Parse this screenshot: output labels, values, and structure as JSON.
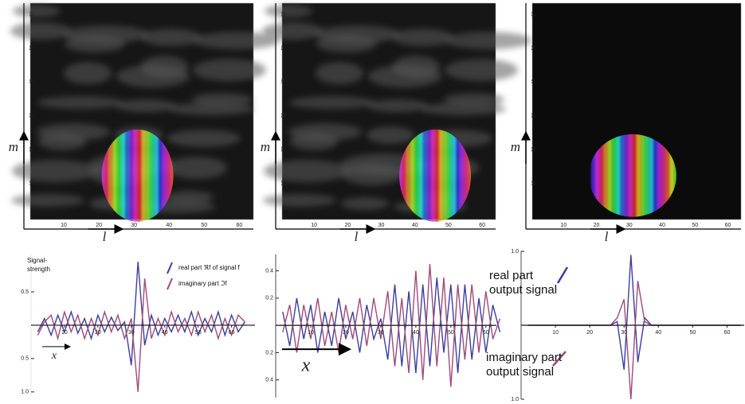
{
  "chart_data": [
    {
      "type": "image",
      "xlabel": "l",
      "ylabel": "m",
      "xlim": [
        0,
        64
      ],
      "ylim": [
        0,
        64
      ],
      "xticks": [
        10,
        20,
        30,
        40,
        50,
        60
      ],
      "yticks": [
        10,
        20,
        30,
        40,
        50,
        60
      ]
    },
    {
      "type": "image",
      "xlabel": "l",
      "ylabel": "m",
      "xlim": [
        0,
        64
      ],
      "ylim": [
        0,
        64
      ],
      "xticks": [
        10,
        20,
        30,
        40,
        50,
        60
      ],
      "yticks": [
        10,
        20,
        30,
        40,
        50,
        60
      ]
    },
    {
      "type": "image",
      "xlabel": "l",
      "ylabel": "m",
      "xlim": [
        0,
        64
      ],
      "ylim": [
        0,
        64
      ],
      "xticks": [
        10,
        20,
        30,
        40,
        50,
        60
      ],
      "yticks": [
        10,
        20,
        30,
        40,
        50,
        60
      ]
    },
    {
      "type": "line",
      "ylabel": [
        "Signal-",
        "strength"
      ],
      "xlabel": "x",
      "xlim": [
        0,
        67
      ],
      "ylim": [
        -1.05,
        1.06
      ],
      "xticks": [
        10,
        20,
        30,
        40,
        50,
        60
      ],
      "yticks": [
        0.5,
        {
          "value": -0.5,
          "label": "0.5"
        },
        {
          "value": -1,
          "label": "1.0"
        }
      ],
      "x": [
        2,
        4,
        6,
        8,
        10,
        12,
        14,
        16,
        18,
        20,
        22,
        24,
        26,
        28,
        30,
        32,
        34,
        36,
        38,
        40,
        42,
        44,
        46,
        48,
        50,
        52,
        54,
        56,
        58,
        60,
        62,
        64
      ],
      "series": [
        {
          "name": "real part ℜf of signal f",
          "color": "#3d3d9e",
          "values": [
            -0.1,
            0.1,
            -0.15,
            0.15,
            -0.1,
            0.2,
            -0.12,
            0.1,
            -0.2,
            0.15,
            -0.1,
            0.12,
            -0.08,
            0.05,
            -0.6,
            0.95,
            -0.3,
            0.15,
            -0.15,
            0.1,
            -0.1,
            0.15,
            -0.1,
            0.2,
            -0.15,
            0.1,
            -0.1,
            0.2,
            -0.15,
            0.15,
            -0.1,
            0.05
          ]
        },
        {
          "name": "imaginary part ℑf",
          "color": "#a04a78",
          "values": [
            -0.15,
            0.05,
            0.15,
            -0.2,
            0.2,
            -0.1,
            0.15,
            -0.2,
            0.1,
            -0.15,
            0.2,
            -0.1,
            0.15,
            -0.2,
            0.1,
            -1.0,
            0.7,
            -0.2,
            0.1,
            -0.15,
            0.2,
            -0.1,
            0.1,
            -0.15,
            0.2,
            -0.1,
            0.15,
            -0.2,
            0.1,
            -0.15,
            0.15,
            0.05
          ]
        }
      ]
    },
    {
      "type": "line",
      "xlabel": "x",
      "xlim": [
        0,
        63
      ],
      "ylim": [
        -0.53,
        0.52
      ],
      "xticks": [
        10,
        20,
        30,
        40,
        50,
        60
      ],
      "yticks": [
        0.4,
        0.2,
        {
          "value": -0.2,
          "label": "0.2"
        },
        {
          "value": -0.4,
          "label": "0.4"
        }
      ],
      "x": [
        2,
        4,
        6,
        8,
        10,
        12,
        14,
        16,
        18,
        20,
        22,
        24,
        26,
        28,
        30,
        32,
        34,
        36,
        38,
        40,
        42,
        44,
        46,
        48,
        50,
        52,
        54,
        56,
        58,
        60,
        62,
        64
      ],
      "series": [
        {
          "color": "#3d3d9e",
          "values": [
            0.1,
            -0.15,
            0.2,
            -0.1,
            0.15,
            -0.2,
            0.1,
            -0.15,
            0.2,
            -0.1,
            0.1,
            -0.2,
            0.15,
            -0.1,
            0.05,
            -0.25,
            0.3,
            -0.3,
            0.25,
            -0.35,
            0.3,
            -0.3,
            0.35,
            -0.2,
            0.3,
            -0.35,
            0.3,
            -0.25,
            0.2,
            -0.2,
            0.15,
            -0.05
          ]
        },
        {
          "color": "#a04a78",
          "values": [
            -0.05,
            0.15,
            -0.2,
            0.15,
            -0.1,
            0.2,
            -0.15,
            0.1,
            -0.2,
            0.15,
            -0.1,
            0.2,
            -0.15,
            0.2,
            -0.1,
            0.25,
            -0.3,
            0.2,
            -0.35,
            0.4,
            -0.4,
            0.45,
            -0.3,
            0.35,
            -0.45,
            0.3,
            -0.25,
            0.3,
            -0.2,
            0.25,
            -0.1,
            0.05
          ]
        }
      ]
    },
    {
      "type": "line",
      "xlim": [
        0,
        65
      ],
      "ylim": [
        -1.0,
        1.0
      ],
      "xticks": [
        10,
        20,
        30,
        40,
        50,
        60
      ],
      "yticks": [
        {
          "value": 1,
          "label": "1.0"
        },
        {
          "value": -1,
          "label": "1.0"
        }
      ],
      "x": [
        2,
        4,
        6,
        8,
        10,
        12,
        14,
        16,
        18,
        20,
        22,
        24,
        26,
        28,
        30,
        32,
        34,
        36,
        38,
        40,
        42,
        44,
        46,
        48,
        50,
        52,
        54,
        56,
        58,
        60,
        62,
        64
      ],
      "series": [
        {
          "name": "real part output signal",
          "color": "#3d3d9e",
          "values": [
            0,
            0,
            0,
            0,
            0,
            0,
            0,
            0,
            0,
            0,
            0,
            0,
            0,
            0.05,
            -0.6,
            0.95,
            -0.5,
            0.1,
            0,
            0,
            0,
            0,
            0,
            0,
            0,
            0,
            0,
            0,
            0,
            0,
            0,
            0
          ]
        },
        {
          "name": "imaginary part output signal",
          "color": "#a04a78",
          "values": [
            0,
            0,
            0,
            0,
            0,
            0,
            0,
            0,
            0,
            0,
            0,
            0,
            0,
            0.1,
            0.35,
            -1.0,
            0.6,
            0.05,
            0,
            0,
            0,
            0,
            0,
            0,
            0,
            0,
            0,
            0,
            0,
            0,
            0,
            0
          ]
        }
      ]
    }
  ]
}
